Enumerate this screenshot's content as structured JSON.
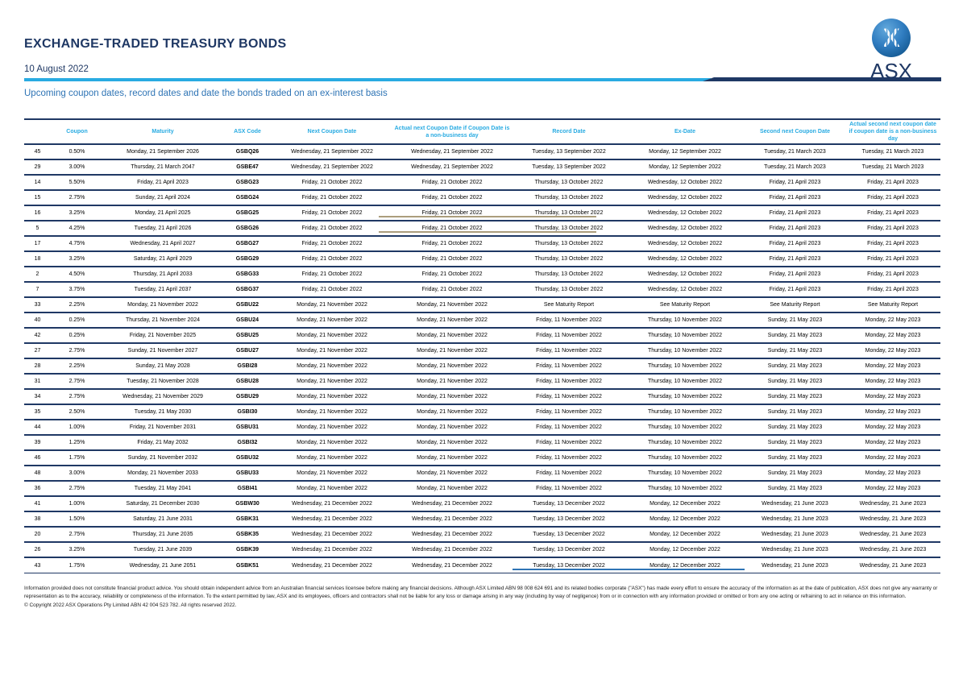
{
  "page": {
    "title": "EXCHANGE-TRADED TREASURY BONDS",
    "date": "10 August 2022",
    "subtitle": "Upcoming coupon dates, record dates and date the bonds traded on an ex-interest basis"
  },
  "logo": {
    "brand": "ASX"
  },
  "colors": {
    "navy": "#1F3864",
    "cyan": "#29ABE2",
    "medium_blue": "#2E74B5",
    "tan_artifact": "#AB9D7C"
  },
  "table": {
    "columns": [
      "",
      "Coupon",
      "Maturity",
      "ASX Code",
      "Next Coupon Date",
      "Actual next Coupon Date if Coupon Date is a non-business day",
      "Record Date",
      "Ex-Date",
      "Second next Coupon Date",
      "Actual second next coupon date if coupon date is a non-business day"
    ],
    "rows": [
      [
        "45",
        "0.50%",
        "Monday, 21 September 2026",
        "GSBQ26",
        "Wednesday, 21 September 2022",
        "Wednesday, 21 September 2022",
        "Tuesday, 13 September 2022",
        "Monday, 12 September 2022",
        "Tuesday, 21 March 2023",
        "Tuesday, 21 March 2023"
      ],
      [
        "29",
        "3.00%",
        "Thursday, 21 March 2047",
        "GSBE47",
        "Wednesday, 21 September 2022",
        "Wednesday, 21 September 2022",
        "Tuesday, 13 September 2022",
        "Monday, 12 September 2022",
        "Tuesday, 21 March 2023",
        "Tuesday, 21 March 2023"
      ],
      [
        "14",
        "5.50%",
        "Friday, 21 April 2023",
        "GSBG23",
        "Friday, 21 October 2022",
        "Friday, 21 October 2022",
        "Thursday, 13 October 2022",
        "Wednesday, 12 October 2022",
        "Friday, 21 April 2023",
        "Friday, 21 April 2023"
      ],
      [
        "15",
        "2.75%",
        "Sunday, 21 April 2024",
        "GSBG24",
        "Friday, 21 October 2022",
        "Friday, 21 October 2022",
        "Thursday, 13 October 2022",
        "Wednesday, 12 October 2022",
        "Friday, 21 April 2023",
        "Friday, 21 April 2023"
      ],
      [
        "16",
        "3.25%",
        "Monday, 21 April 2025",
        "GSBG25",
        "Friday, 21 October 2022",
        "Friday, 21 October 2022",
        "Thursday, 13 October 2022",
        "Wednesday, 12 October 2022",
        "Friday, 21 April 2023",
        "Friday, 21 April 2023"
      ],
      [
        "5",
        "4.25%",
        "Tuesday, 21 April 2026",
        "GSBG26",
        "Friday, 21 October 2022",
        "Friday, 21 October 2022",
        "Thursday, 13 October 2022",
        "Wednesday, 12 October 2022",
        "Friday, 21 April 2023",
        "Friday, 21 April 2023"
      ],
      [
        "17",
        "4.75%",
        "Wednesday, 21 April 2027",
        "GSBG27",
        "Friday, 21 October 2022",
        "Friday, 21 October 2022",
        "Thursday, 13 October 2022",
        "Wednesday, 12 October 2022",
        "Friday, 21 April 2023",
        "Friday, 21 April 2023"
      ],
      [
        "18",
        "3.25%",
        "Saturday, 21 April 2029",
        "GSBG29",
        "Friday, 21 October 2022",
        "Friday, 21 October 2022",
        "Thursday, 13 October 2022",
        "Wednesday, 12 October 2022",
        "Friday, 21 April 2023",
        "Friday, 21 April 2023"
      ],
      [
        "2",
        "4.50%",
        "Thursday, 21 April 2033",
        "GSBG33",
        "Friday, 21 October 2022",
        "Friday, 21 October 2022",
        "Thursday, 13 October 2022",
        "Wednesday, 12 October 2022",
        "Friday, 21 April 2023",
        "Friday, 21 April 2023"
      ],
      [
        "7",
        "3.75%",
        "Tuesday, 21 April 2037",
        "GSBG37",
        "Friday, 21 October 2022",
        "Friday, 21 October 2022",
        "Thursday, 13 October 2022",
        "Wednesday, 12 October 2022",
        "Friday, 21 April 2023",
        "Friday, 21 April 2023"
      ],
      [
        "33",
        "2.25%",
        "Monday, 21 November 2022",
        "GSBU22",
        "Monday, 21 November 2022",
        "Monday, 21 November 2022",
        "See Maturity Report",
        "See Maturity Report",
        "See Maturity Report",
        "See Maturity Report"
      ],
      [
        "40",
        "0.25%",
        "Thursday, 21 November 2024",
        "GSBU24",
        "Monday, 21 November 2022",
        "Monday, 21 November 2022",
        "Friday, 11 November 2022",
        "Thursday, 10 November 2022",
        "Sunday, 21 May 2023",
        "Monday, 22 May 2023"
      ],
      [
        "42",
        "0.25%",
        "Friday, 21 November 2025",
        "GSBU25",
        "Monday, 21 November 2022",
        "Monday, 21 November 2022",
        "Friday, 11 November 2022",
        "Thursday, 10 November 2022",
        "Sunday, 21 May 2023",
        "Monday, 22 May 2023"
      ],
      [
        "27",
        "2.75%",
        "Sunday, 21 November 2027",
        "GSBU27",
        "Monday, 21 November 2022",
        "Monday, 21 November 2022",
        "Friday, 11 November 2022",
        "Thursday, 10 November 2022",
        "Sunday, 21 May 2023",
        "Monday, 22 May 2023"
      ],
      [
        "28",
        "2.25%",
        "Sunday, 21 May 2028",
        "GSBI28",
        "Monday, 21 November 2022",
        "Monday, 21 November 2022",
        "Friday, 11 November 2022",
        "Thursday, 10 November 2022",
        "Sunday, 21 May 2023",
        "Monday, 22 May 2023"
      ],
      [
        "31",
        "2.75%",
        "Tuesday, 21 November 2028",
        "GSBU28",
        "Monday, 21 November 2022",
        "Monday, 21 November 2022",
        "Friday, 11 November 2022",
        "Thursday, 10 November 2022",
        "Sunday, 21 May 2023",
        "Monday, 22 May 2023"
      ],
      [
        "34",
        "2.75%",
        "Wednesday, 21 November 2029",
        "GSBU29",
        "Monday, 21 November 2022",
        "Monday, 21 November 2022",
        "Friday, 11 November 2022",
        "Thursday, 10 November 2022",
        "Sunday, 21 May 2023",
        "Monday, 22 May 2023"
      ],
      [
        "35",
        "2.50%",
        "Tuesday, 21 May 2030",
        "GSBI30",
        "Monday, 21 November 2022",
        "Monday, 21 November 2022",
        "Friday, 11 November 2022",
        "Thursday, 10 November 2022",
        "Sunday, 21 May 2023",
        "Monday, 22 May 2023"
      ],
      [
        "44",
        "1.00%",
        "Friday, 21 November 2031",
        "GSBU31",
        "Monday, 21 November 2022",
        "Monday, 21 November 2022",
        "Friday, 11 November 2022",
        "Thursday, 10 November 2022",
        "Sunday, 21 May 2023",
        "Monday, 22 May 2023"
      ],
      [
        "39",
        "1.25%",
        "Friday, 21 May 2032",
        "GSBI32",
        "Monday, 21 November 2022",
        "Monday, 21 November 2022",
        "Friday, 11 November 2022",
        "Thursday, 10 November 2022",
        "Sunday, 21 May 2023",
        "Monday, 22 May 2023"
      ],
      [
        "46",
        "1.75%",
        "Sunday, 21 November 2032",
        "GSBU32",
        "Monday, 21 November 2022",
        "Monday, 21 November 2022",
        "Friday, 11 November 2022",
        "Thursday, 10 November 2022",
        "Sunday, 21 May 2023",
        "Monday, 22 May 2023"
      ],
      [
        "48",
        "3.00%",
        "Monday, 21 November 2033",
        "GSBU33",
        "Monday, 21 November 2022",
        "Monday, 21 November 2022",
        "Friday, 11 November 2022",
        "Thursday, 10 November 2022",
        "Sunday, 21 May 2023",
        "Monday, 22 May 2023"
      ],
      [
        "36",
        "2.75%",
        "Tuesday, 21 May 2041",
        "GSBI41",
        "Monday, 21 November 2022",
        "Monday, 21 November 2022",
        "Friday, 11 November 2022",
        "Thursday, 10 November 2022",
        "Sunday, 21 May 2023",
        "Monday, 22 May 2023"
      ],
      [
        "41",
        "1.00%",
        "Saturday, 21 December 2030",
        "GSBW30",
        "Wednesday, 21 December 2022",
        "Wednesday, 21 December 2022",
        "Tuesday, 13 December 2022",
        "Monday, 12 December 2022",
        "Wednesday, 21 June 2023",
        "Wednesday, 21 June 2023"
      ],
      [
        "38",
        "1.50%",
        "Saturday, 21 June 2031",
        "GSBK31",
        "Wednesday, 21 December 2022",
        "Wednesday, 21 December 2022",
        "Tuesday, 13 December 2022",
        "Monday, 12 December 2022",
        "Wednesday, 21 June 2023",
        "Wednesday, 21 June 2023"
      ],
      [
        "20",
        "2.75%",
        "Thursday, 21 June 2035",
        "GSBK35",
        "Wednesday, 21 December 2022",
        "Wednesday, 21 December 2022",
        "Tuesday, 13 December 2022",
        "Monday, 12 December 2022",
        "Wednesday, 21 June 2023",
        "Wednesday, 21 June 2023"
      ],
      [
        "26",
        "3.25%",
        "Tuesday, 21 June 2039",
        "GSBK39",
        "Wednesday, 21 December 2022",
        "Wednesday, 21 December 2022",
        "Tuesday, 13 December 2022",
        "Monday, 12 December 2022",
        "Wednesday, 21 June 2023",
        "Wednesday, 21 June 2023"
      ],
      [
        "43",
        "1.75%",
        "Wednesday, 21 June 2051",
        "GSBK51",
        "Wednesday, 21 December 2022",
        "Wednesday, 21 December 2022",
        "Tuesday, 13 December 2022",
        "Monday, 12 December 2022",
        "Wednesday, 21 June 2023",
        "Wednesday, 21 June 2023"
      ]
    ]
  },
  "footer": {
    "disclaimer": "Information provided does not constitute financial product advice.  You should obtain independent advice from an Australian financial services licensee before making any financial decisions.  Although ASX Limited ABN 98 008 624 691 and its related bodies corporate (\"ASX\") has made every effort to ensure the accuracy of the information as at the date of publication, ASX does not give any warranty or representation as to the accuracy, reliability or completeness of the information.  To the extent permitted by law, ASX and its employees, officers and contractors shall not be liable for any loss or damage arising in any way (including by way of negligence) from or in connection with any information provided or omitted or from any one acting or refraining to act in reliance on this information.",
    "copyright": "© Copyright 2022 ASX Operations Pty Limited ABN 42 004 523 782. All rights reserved 2022."
  }
}
